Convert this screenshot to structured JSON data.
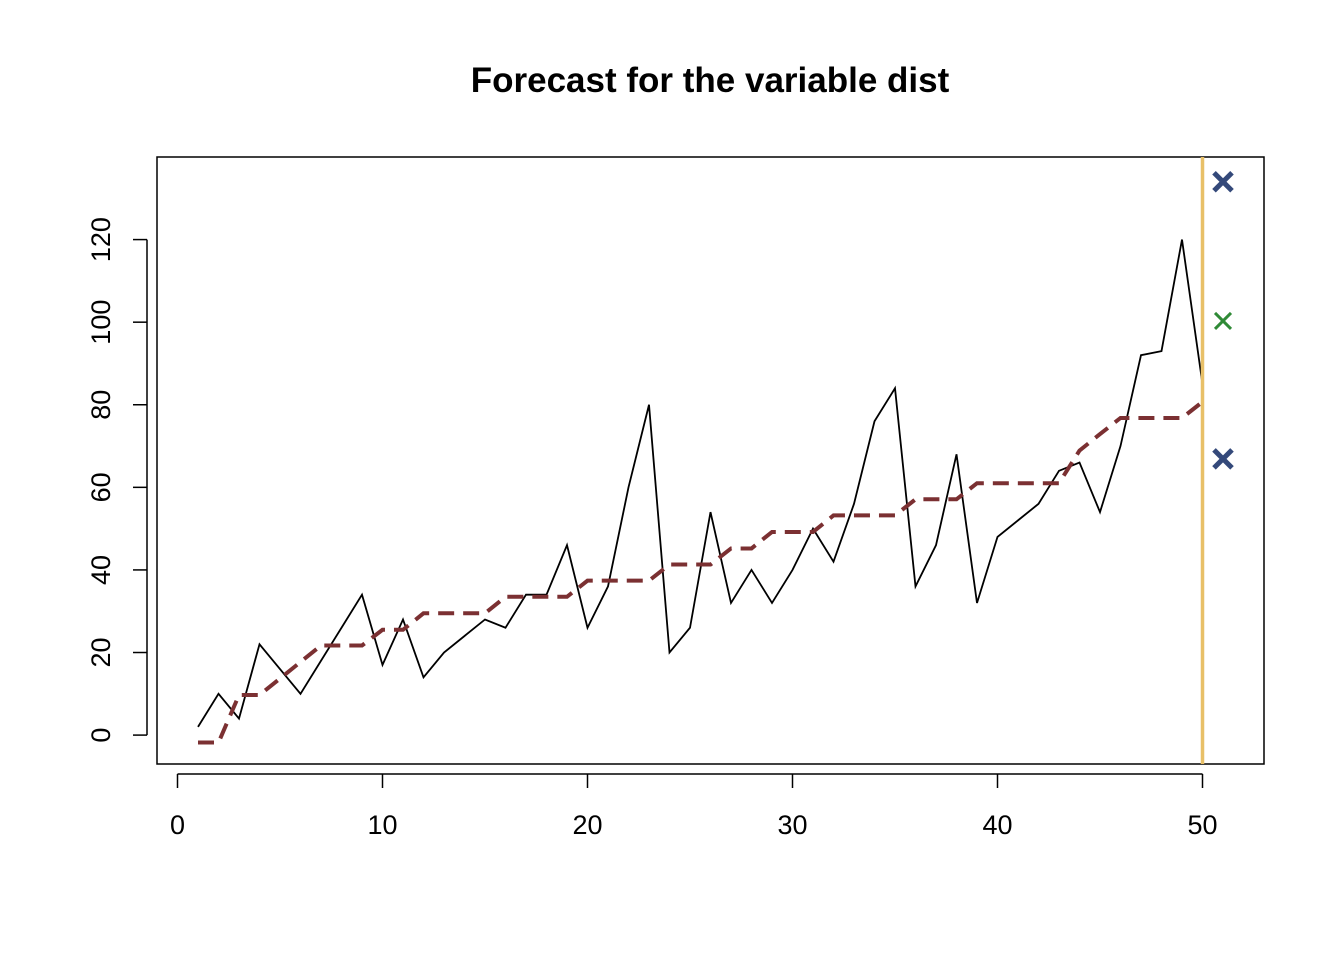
{
  "chart_data": {
    "type": "line",
    "title": "Forecast for the variable dist",
    "xlabel": "",
    "ylabel": "",
    "xlim": [
      -1,
      53
    ],
    "ylim": [
      -7,
      140
    ],
    "x_ticks": [
      0,
      10,
      20,
      30,
      40,
      50
    ],
    "y_ticks": [
      0,
      20,
      40,
      60,
      80,
      100,
      120
    ],
    "grid": false,
    "series": [
      {
        "style": "solid",
        "color": "#000000",
        "x": [
          1,
          2,
          3,
          4,
          5,
          6,
          7,
          8,
          9,
          10,
          11,
          12,
          13,
          14,
          15,
          16,
          17,
          18,
          19,
          20,
          21,
          22,
          23,
          24,
          25,
          26,
          27,
          28,
          29,
          30,
          31,
          32,
          33,
          34,
          35,
          36,
          37,
          38,
          39,
          40,
          41,
          42,
          43,
          44,
          45,
          46,
          47,
          48,
          49,
          50
        ],
        "values": [
          2,
          10,
          4,
          22,
          16,
          10,
          18,
          26,
          34,
          17,
          28,
          14,
          20,
          24,
          28,
          26,
          34,
          34,
          46,
          26,
          36,
          60,
          80,
          20,
          26,
          54,
          32,
          40,
          32,
          40,
          50,
          42,
          56,
          76,
          84,
          36,
          46,
          68,
          32,
          48,
          52,
          56,
          64,
          66,
          54,
          70,
          92,
          93,
          120,
          85
        ]
      },
      {
        "style": "dashed",
        "color": "#7b3032",
        "x": [
          1,
          2,
          3,
          4,
          5,
          6,
          7,
          8,
          9,
          10,
          11,
          12,
          13,
          14,
          15,
          16,
          17,
          18,
          19,
          20,
          21,
          22,
          23,
          24,
          25,
          26,
          27,
          28,
          29,
          30,
          31,
          32,
          33,
          34,
          35,
          36,
          37,
          38,
          39,
          40,
          41,
          42,
          43,
          44,
          45,
          46,
          47,
          48,
          49,
          50
        ],
        "values": [
          -1.8,
          -1.8,
          9.7,
          9.7,
          13.7,
          17.7,
          21.7,
          21.7,
          21.7,
          25.5,
          25.5,
          29.5,
          29.5,
          29.5,
          29.5,
          33.5,
          33.5,
          33.5,
          33.5,
          37.4,
          37.4,
          37.4,
          37.4,
          41.3,
          41.3,
          41.3,
          45.2,
          45.2,
          49.2,
          49.2,
          49.2,
          53.2,
          53.2,
          53.2,
          53.2,
          57.1,
          57.1,
          57.1,
          61.0,
          61.0,
          61.0,
          61.0,
          61.0,
          68.9,
          72.9,
          76.8,
          76.8,
          76.8,
          76.8,
          80.7
        ]
      }
    ],
    "forecast_origin": {
      "x": 50,
      "color": "#e8c068"
    },
    "forecast_points": [
      {
        "x": 51,
        "y": 134,
        "color": "#34497a",
        "marker": "x-bold"
      },
      {
        "x": 51,
        "y": 100.3,
        "color": "#2f8a36",
        "marker": "x"
      },
      {
        "x": 51,
        "y": 66.9,
        "color": "#34497a",
        "marker": "x-bold"
      }
    ]
  }
}
